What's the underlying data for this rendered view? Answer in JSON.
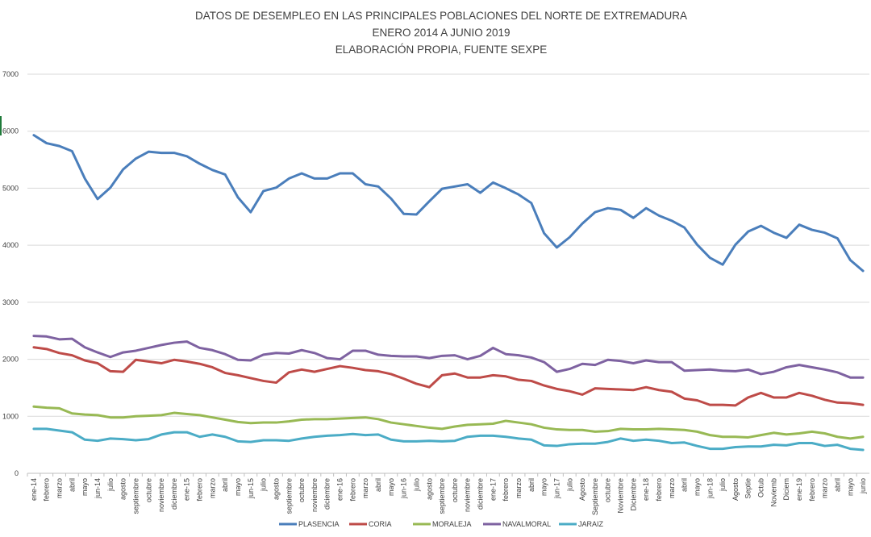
{
  "chart_data": {
    "type": "line",
    "title": [
      "DATOS DE DESEMPLEO EN LAS PRINCIPALES POBLACIONES DEL NORTE DE EXTREMADURA",
      "ENERO 2014 A  JUNIO 2019",
      "ELABORACIÓN PROPIA, FUENTE SEXPE"
    ],
    "xlabel": "",
    "ylabel": "",
    "ylim": [
      0,
      7000
    ],
    "yticks": [
      0,
      1000,
      2000,
      3000,
      4000,
      5000,
      6000,
      7000
    ],
    "grid": true,
    "legend_position": "bottom",
    "categories": [
      "ene-14",
      "febrero",
      "marzo",
      "abril",
      "mayo",
      "jun-14",
      "julio",
      "agosto",
      "septiembre",
      "octubre",
      "noviembre",
      "diciembre",
      "ene-15",
      "febrero",
      "marzo",
      "abril",
      "mayo",
      "jun-15",
      "julio",
      "agosto",
      "septiembre",
      "octubre",
      "noviembre",
      "diciembre",
      "ene-16",
      "febrero",
      "marzo",
      "abril",
      "mayo",
      "jun-16",
      "julio",
      "agosto",
      "septiembre",
      "octubre",
      "noviembre",
      "diciembre",
      "ene-17",
      "febrero",
      "marzo",
      "abril",
      "mayo",
      "jun-17",
      "julio",
      "Agosto",
      "Septiembre",
      "octubre",
      "Noviembre",
      "Diciembre",
      "ene-18",
      "febrero",
      "marzo",
      "abril",
      "mayo",
      "jun-18",
      "julio",
      "Agosto",
      "Septie",
      "Octub",
      "Noviemb",
      "Diciem",
      "ene-19",
      "febrero",
      "marzo",
      "abril",
      "mayo",
      "junio"
    ],
    "series": [
      {
        "name": "PLASENCIA",
        "color": "#4a7ebb",
        "values": [
          5930,
          5790,
          5740,
          5650,
          5170,
          4810,
          5010,
          5330,
          5520,
          5640,
          5620,
          5620,
          5560,
          5430,
          5320,
          5240,
          4840,
          4580,
          4950,
          5010,
          5170,
          5260,
          5170,
          5170,
          5260,
          5260,
          5070,
          5030,
          4820,
          4550,
          4540,
          4770,
          4990,
          5030,
          5070,
          4920,
          5100,
          5000,
          4890,
          4740,
          4210,
          3960,
          4140,
          4380,
          4580,
          4650,
          4620,
          4480,
          4650,
          4520,
          4430,
          4310,
          4010,
          3780,
          3660,
          4010,
          4240,
          4340,
          4220,
          4130,
          4360,
          4270,
          4220,
          4120,
          3740,
          3550
        ]
      },
      {
        "name": "CORIA",
        "color": "#be4b48",
        "values": [
          2210,
          2180,
          2110,
          2070,
          1980,
          1930,
          1790,
          1780,
          1990,
          1960,
          1930,
          1990,
          1960,
          1920,
          1860,
          1760,
          1720,
          1670,
          1620,
          1590,
          1770,
          1820,
          1780,
          1830,
          1880,
          1850,
          1810,
          1790,
          1740,
          1660,
          1570,
          1510,
          1720,
          1750,
          1680,
          1680,
          1720,
          1700,
          1640,
          1620,
          1540,
          1480,
          1440,
          1380,
          1490,
          1480,
          1470,
          1460,
          1510,
          1460,
          1430,
          1310,
          1280,
          1200,
          1200,
          1190,
          1330,
          1410,
          1330,
          1330,
          1410,
          1360,
          1290,
          1240,
          1230,
          1200
        ]
      },
      {
        "name": "MORALEJA",
        "color": "#98b954",
        "values": [
          1170,
          1150,
          1140,
          1050,
          1030,
          1020,
          980,
          980,
          1000,
          1010,
          1020,
          1060,
          1040,
          1020,
          980,
          940,
          900,
          880,
          890,
          890,
          910,
          940,
          950,
          950,
          960,
          970,
          980,
          950,
          890,
          860,
          830,
          800,
          780,
          820,
          850,
          860,
          870,
          920,
          890,
          860,
          800,
          770,
          760,
          760,
          730,
          740,
          780,
          770,
          770,
          780,
          770,
          760,
          730,
          670,
          640,
          640,
          630,
          670,
          710,
          680,
          700,
          730,
          700,
          640,
          610,
          640
        ]
      },
      {
        "name": "NAVALMORAL",
        "color": "#7e62a1",
        "values": [
          2410,
          2400,
          2350,
          2360,
          2210,
          2120,
          2040,
          2120,
          2150,
          2200,
          2250,
          2290,
          2310,
          2200,
          2160,
          2090,
          1990,
          1980,
          2080,
          2110,
          2100,
          2160,
          2110,
          2020,
          2000,
          2150,
          2150,
          2080,
          2060,
          2050,
          2050,
          2020,
          2060,
          2070,
          2000,
          2060,
          2200,
          2090,
          2070,
          2030,
          1950,
          1780,
          1830,
          1920,
          1900,
          1990,
          1970,
          1930,
          1980,
          1950,
          1950,
          1800,
          1810,
          1820,
          1800,
          1790,
          1820,
          1740,
          1780,
          1860,
          1900,
          1860,
          1820,
          1770,
          1680,
          1680
        ]
      },
      {
        "name": "JARAIZ",
        "color": "#4bacc6",
        "values": [
          780,
          780,
          750,
          720,
          590,
          570,
          610,
          600,
          580,
          600,
          680,
          720,
          720,
          640,
          680,
          640,
          560,
          550,
          580,
          580,
          570,
          610,
          640,
          660,
          670,
          690,
          670,
          680,
          590,
          560,
          560,
          570,
          560,
          570,
          640,
          660,
          660,
          640,
          610,
          590,
          490,
          480,
          510,
          520,
          520,
          550,
          610,
          570,
          590,
          570,
          530,
          540,
          480,
          430,
          430,
          460,
          470,
          470,
          500,
          490,
          530,
          530,
          480,
          500,
          430,
          410
        ]
      }
    ]
  }
}
